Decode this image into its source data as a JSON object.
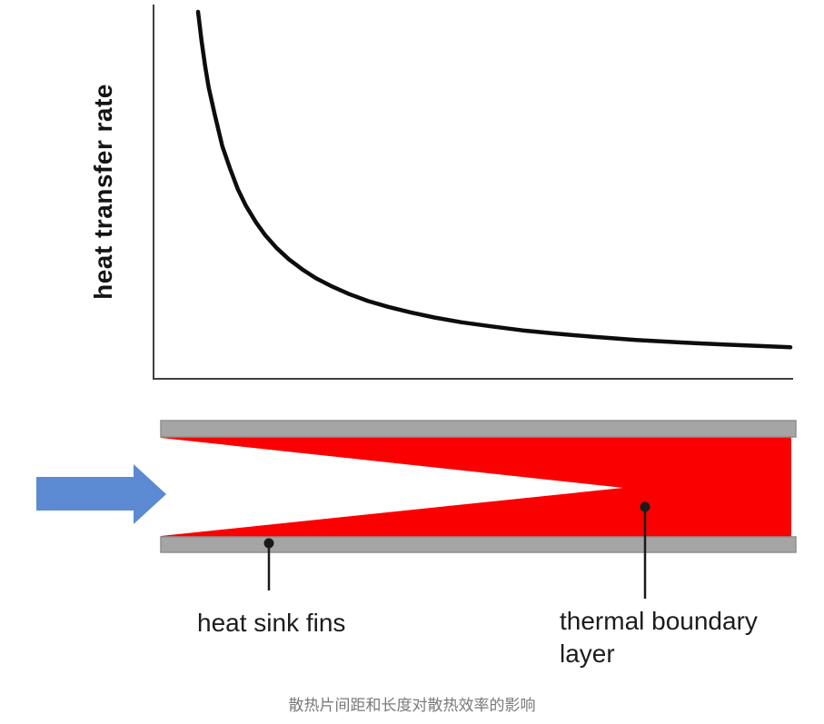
{
  "figure": {
    "caption": "散热片间距和长度对散热效率的影响"
  },
  "chart_data": {
    "type": "line",
    "title": "",
    "xlabel": "",
    "ylabel": "heat transfer rate",
    "x_axis_range": [
      0,
      1
    ],
    "y_axis_range": [
      0,
      1
    ],
    "ticks": "none (qualitative sketch, no tick labels)",
    "grid": false,
    "legend": false,
    "line_color": "#0d0d0d",
    "axis_color": "#404040",
    "series": [
      {
        "name": "heat transfer rate (hyperbolic decay vs. fin spacing/length)",
        "points": [
          [
            0.0,
            1.0
          ],
          [
            0.006,
            0.92
          ],
          [
            0.012,
            0.852
          ],
          [
            0.018,
            0.794
          ],
          [
            0.028,
            0.721
          ],
          [
            0.041,
            0.634
          ],
          [
            0.054,
            0.573
          ],
          [
            0.067,
            0.517
          ],
          [
            0.081,
            0.471
          ],
          [
            0.098,
            0.426
          ],
          [
            0.113,
            0.392
          ],
          [
            0.133,
            0.356
          ],
          [
            0.153,
            0.326
          ],
          [
            0.176,
            0.298
          ],
          [
            0.199,
            0.274
          ],
          [
            0.227,
            0.251
          ],
          [
            0.255,
            0.231
          ],
          [
            0.287,
            0.212
          ],
          [
            0.321,
            0.196
          ],
          [
            0.359,
            0.181
          ],
          [
            0.399,
            0.167
          ],
          [
            0.445,
            0.154
          ],
          [
            0.494,
            0.143
          ],
          [
            0.548,
            0.132
          ],
          [
            0.604,
            0.123
          ],
          [
            0.67,
            0.114
          ],
          [
            0.739,
            0.106
          ],
          [
            0.816,
            0.099
          ],
          [
            0.893,
            0.093
          ],
          [
            1.0,
            0.086
          ]
        ]
      }
    ]
  },
  "diagram": {
    "fins_label": "heat sink fins",
    "boundary_label": "thermal boundary layer",
    "flow_arrow_meaning": "airflow direction into fin channel",
    "colors": {
      "fin_gray": "#a5a5a5",
      "fin_gray_edge": "#8e8e8e",
      "boundary_red": "#fb0000",
      "arrow_blue": "#5b8ad2",
      "leader_black": "#1a1a1a"
    }
  }
}
